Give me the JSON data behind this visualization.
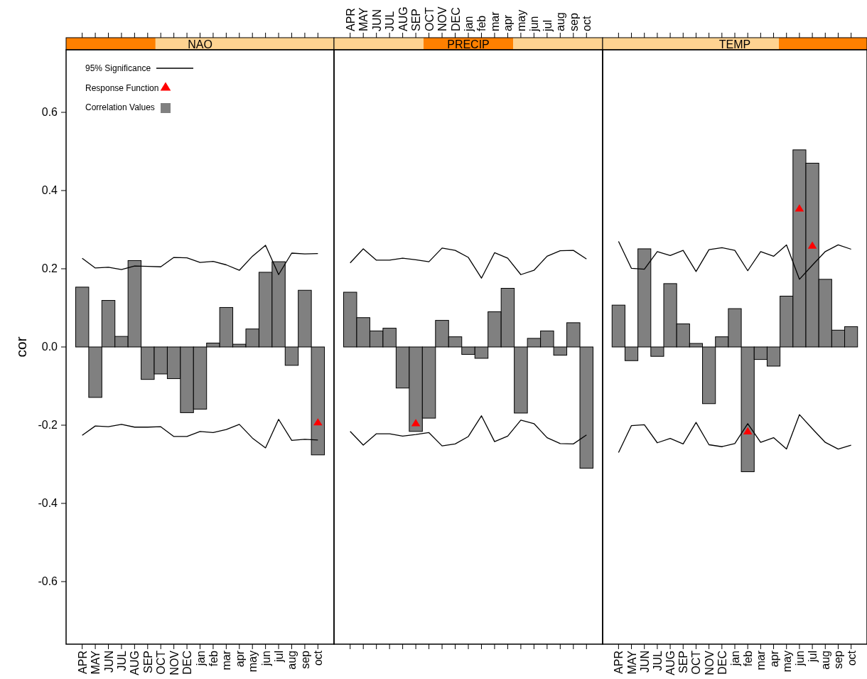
{
  "chart_data": [
    {
      "type": "bar",
      "title": "NAO",
      "ylabel": "cor",
      "legend": "top left",
      "ylim": [
        -0.76,
        0.76
      ],
      "yticks": [
        -0.6,
        -0.4,
        -0.2,
        {
          "value": 0,
          "label": "0.0"
        },
        0.2,
        0.4,
        0.6
      ],
      "categories": [
        "APR",
        "MAY",
        "JUN",
        "JUL",
        "AUG",
        "SEP",
        "OCT",
        "NOV",
        "DEC",
        "jan",
        "feb",
        "mar",
        "apr",
        "may",
        "jun",
        "jul",
        "aug",
        "sep",
        "oct"
      ],
      "series": [
        {
          "name": "95% Significance",
          "type": "line",
          "color": "#000000",
          "marker": "none",
          "values": [
            0.227,
            0.202,
            0.204,
            0.198,
            0.207,
            0.206,
            0.205,
            0.229,
            0.228,
            0.216,
            0.219,
            0.21,
            0.196,
            0.232,
            0.26,
            0.185,
            0.24,
            0.238,
            0.239
          ]
        },
        {
          "type": "line",
          "color": "#000000",
          "marker": "none",
          "values": [
            -0.226,
            -0.202,
            -0.204,
            -0.198,
            -0.205,
            -0.205,
            -0.204,
            -0.229,
            -0.229,
            -0.216,
            -0.219,
            -0.211,
            -0.198,
            -0.233,
            -0.258,
            -0.185,
            -0.239,
            -0.236,
            -0.238
          ]
        },
        {
          "name": "Response Function",
          "type": "scatter",
          "color": "#ff0000",
          "marker": "triangle",
          "x": [
            "oct"
          ],
          "values": [
            -0.193
          ]
        },
        {
          "name": "Correlation Values",
          "type": "bar",
          "color": "#808080",
          "values": [
            0.153,
            -0.129,
            0.119,
            0.027,
            0.221,
            -0.083,
            -0.069,
            -0.081,
            -0.168,
            -0.159,
            0.01,
            0.101,
            0.007,
            0.046,
            0.191,
            0.218,
            -0.047,
            0.145,
            -0.276
          ]
        }
      ]
    },
    {
      "type": "bar",
      "title": "PRECIP",
      "tick_labels": "x",
      "ylim": [
        -0.76,
        0.76
      ],
      "categories": [
        "APR",
        "MAY",
        "JUN",
        "JUL",
        "AUG",
        "SEP",
        "OCT",
        "NOV",
        "DEC",
        "jan",
        "feb",
        "mar",
        "apr",
        "may",
        "jun",
        "jul",
        "aug",
        "sep",
        "oct"
      ],
      "series": [
        {
          "type": "line",
          "color": "#000000",
          "marker": "none",
          "values": [
            0.215,
            0.251,
            0.222,
            0.222,
            0.227,
            0.223,
            0.218,
            0.253,
            0.247,
            0.229,
            0.176,
            0.241,
            0.227,
            0.185,
            0.196,
            0.232,
            0.246,
            0.247,
            0.225
          ]
        },
        {
          "type": "line",
          "color": "#000000",
          "marker": "none",
          "values": [
            -0.216,
            -0.251,
            -0.222,
            -0.222,
            -0.228,
            -0.224,
            -0.219,
            -0.253,
            -0.248,
            -0.229,
            -0.176,
            -0.242,
            -0.228,
            -0.187,
            -0.196,
            -0.232,
            -0.247,
            -0.248,
            -0.225
          ]
        },
        {
          "type": "scatter",
          "color": "#ff0000",
          "marker": "triangle",
          "x": [
            "SEP"
          ],
          "values": [
            -0.195
          ]
        },
        {
          "type": "bar",
          "color": "#808080",
          "values": [
            0.14,
            0.075,
            0.041,
            0.048,
            -0.105,
            -0.216,
            -0.182,
            0.068,
            0.026,
            -0.019,
            -0.029,
            0.09,
            0.15,
            -0.169,
            0.022,
            0.041,
            -0.021,
            0.062,
            -0.31
          ]
        }
      ]
    },
    {
      "type": "bar",
      "title": "TEMP",
      "tick_labels": "x",
      "ylim": [
        -0.76,
        0.76
      ],
      "categories": [
        "APR",
        "MAY",
        "JUN",
        "JUL",
        "AUG",
        "SEP",
        "OCT",
        "NOV",
        "DEC",
        "jan",
        "feb",
        "mar",
        "apr",
        "may",
        "jun",
        "jul",
        "aug",
        "sep",
        "oct"
      ],
      "series": [
        {
          "type": "line",
          "color": "#000000",
          "marker": "none",
          "values": [
            0.27,
            0.201,
            0.199,
            0.244,
            0.234,
            0.247,
            0.193,
            0.249,
            0.254,
            0.247,
            0.195,
            0.244,
            0.232,
            0.261,
            0.173,
            0.209,
            0.244,
            0.261,
            0.25
          ]
        },
        {
          "type": "line",
          "color": "#000000",
          "marker": "none",
          "values": [
            -0.27,
            -0.201,
            -0.199,
            -0.245,
            -0.234,
            -0.248,
            -0.193,
            -0.25,
            -0.255,
            -0.247,
            -0.196,
            -0.244,
            -0.232,
            -0.261,
            -0.173,
            -0.209,
            -0.244,
            -0.261,
            -0.251
          ]
        },
        {
          "type": "scatter",
          "color": "#ff0000",
          "marker": "triangle",
          "x": [
            "feb",
            "jun",
            "jul"
          ],
          "values": [
            -0.216,
            0.354,
            0.259
          ]
        },
        {
          "type": "bar",
          "color": "#808080",
          "values": [
            0.107,
            -0.035,
            0.251,
            -0.024,
            0.162,
            0.059,
            0.009,
            -0.145,
            0.026,
            0.098,
            -0.319,
            -0.032,
            -0.049,
            0.13,
            0.504,
            0.47,
            0.173,
            0.043,
            0.052
          ]
        }
      ]
    }
  ]
}
